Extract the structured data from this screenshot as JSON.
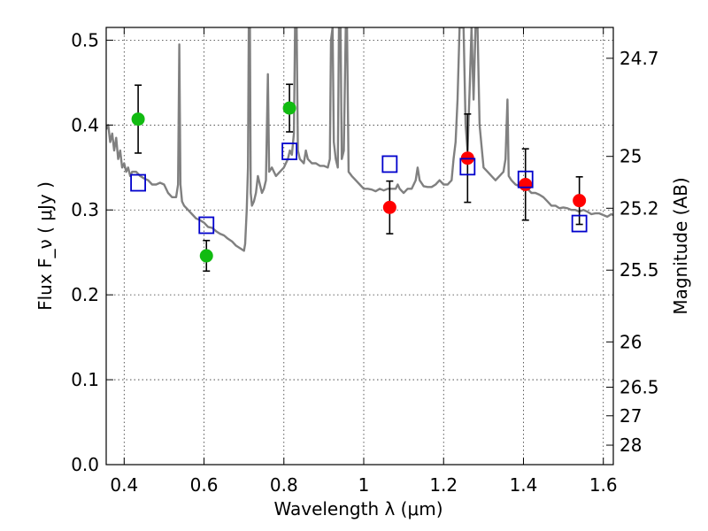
{
  "chart_data": {
    "type": "scatter",
    "xlabel": "Wavelength  λ (μm)",
    "ylabel": "Flux  F_ν  ( μJy )",
    "y2label": "Magnitude (AB)",
    "xlim": [
      0.355,
      1.625
    ],
    "ylim": [
      0.0,
      0.515
    ],
    "grid": true,
    "x_ticks": [
      {
        "value": 0.4,
        "label": "0.4"
      },
      {
        "value": 0.6,
        "label": "0.6"
      },
      {
        "value": 0.8,
        "label": "0.8"
      },
      {
        "value": 1.0,
        "label": "1"
      },
      {
        "value": 1.2,
        "label": "1.2"
      },
      {
        "value": 1.4,
        "label": "1.4"
      },
      {
        "value": 1.6,
        "label": "1.6"
      }
    ],
    "y_ticks": [
      {
        "value": 0.0,
        "label": "0.0"
      },
      {
        "value": 0.1,
        "label": "0.1"
      },
      {
        "value": 0.2,
        "label": "0.2"
      },
      {
        "value": 0.3,
        "label": "0.3"
      },
      {
        "value": 0.4,
        "label": "0.4"
      },
      {
        "value": 0.5,
        "label": "0.5"
      }
    ],
    "mag_ticks": [
      {
        "value": 24.7,
        "label": "24.7"
      },
      {
        "value": 25.0,
        "label": "25"
      },
      {
        "value": 25.2,
        "label": "25.2"
      },
      {
        "value": 25.5,
        "label": "25.5"
      },
      {
        "value": 26.0,
        "label": "26"
      },
      {
        "value": 26.5,
        "label": "26.5"
      },
      {
        "value": 27.0,
        "label": "27"
      },
      {
        "value": 28.0,
        "label": "28"
      }
    ],
    "spectrum": {
      "color": "#808080",
      "points": [
        [
          0.355,
          0.395
        ],
        [
          0.36,
          0.4
        ],
        [
          0.365,
          0.38
        ],
        [
          0.37,
          0.39
        ],
        [
          0.375,
          0.37
        ],
        [
          0.38,
          0.385
        ],
        [
          0.385,
          0.36
        ],
        [
          0.39,
          0.37
        ],
        [
          0.395,
          0.35
        ],
        [
          0.4,
          0.355
        ],
        [
          0.405,
          0.345
        ],
        [
          0.41,
          0.35
        ],
        [
          0.415,
          0.34
        ],
        [
          0.42,
          0.345
        ],
        [
          0.43,
          0.345
        ],
        [
          0.44,
          0.34
        ],
        [
          0.45,
          0.337
        ],
        [
          0.46,
          0.335
        ],
        [
          0.47,
          0.33
        ],
        [
          0.48,
          0.33
        ],
        [
          0.49,
          0.332
        ],
        [
          0.5,
          0.33
        ],
        [
          0.51,
          0.32
        ],
        [
          0.52,
          0.315
        ],
        [
          0.53,
          0.315
        ],
        [
          0.535,
          0.33
        ],
        [
          0.538,
          0.495
        ],
        [
          0.541,
          0.33
        ],
        [
          0.545,
          0.31
        ],
        [
          0.55,
          0.305
        ],
        [
          0.56,
          0.3
        ],
        [
          0.57,
          0.295
        ],
        [
          0.58,
          0.29
        ],
        [
          0.59,
          0.288
        ],
        [
          0.6,
          0.285
        ],
        [
          0.61,
          0.28
        ],
        [
          0.62,
          0.279
        ],
        [
          0.63,
          0.275
        ],
        [
          0.64,
          0.272
        ],
        [
          0.65,
          0.27
        ],
        [
          0.66,
          0.266
        ],
        [
          0.67,
          0.263
        ],
        [
          0.68,
          0.258
        ],
        [
          0.69,
          0.255
        ],
        [
          0.7,
          0.252
        ],
        [
          0.703,
          0.26
        ],
        [
          0.707,
          0.3
        ],
        [
          0.71,
          0.35
        ],
        [
          0.712,
          0.515
        ],
        [
          0.715,
          0.515
        ],
        [
          0.717,
          0.32
        ],
        [
          0.72,
          0.305
        ],
        [
          0.725,
          0.31
        ],
        [
          0.73,
          0.32
        ],
        [
          0.735,
          0.34
        ],
        [
          0.74,
          0.33
        ],
        [
          0.745,
          0.32
        ],
        [
          0.75,
          0.325
        ],
        [
          0.755,
          0.335
        ],
        [
          0.76,
          0.46
        ],
        [
          0.763,
          0.345
        ],
        [
          0.77,
          0.35
        ],
        [
          0.78,
          0.34
        ],
        [
          0.79,
          0.345
        ],
        [
          0.8,
          0.35
        ],
        [
          0.805,
          0.355
        ],
        [
          0.81,
          0.36
        ],
        [
          0.815,
          0.37
        ],
        [
          0.82,
          0.365
        ],
        [
          0.825,
          0.39
        ],
        [
          0.828,
          0.515
        ],
        [
          0.832,
          0.515
        ],
        [
          0.835,
          0.37
        ],
        [
          0.84,
          0.36
        ],
        [
          0.85,
          0.355
        ],
        [
          0.855,
          0.37
        ],
        [
          0.86,
          0.36
        ],
        [
          0.87,
          0.355
        ],
        [
          0.88,
          0.355
        ],
        [
          0.89,
          0.352
        ],
        [
          0.9,
          0.352
        ],
        [
          0.91,
          0.35
        ],
        [
          0.915,
          0.36
        ],
        [
          0.918,
          0.5
        ],
        [
          0.922,
          0.515
        ],
        [
          0.925,
          0.38
        ],
        [
          0.93,
          0.36
        ],
        [
          0.935,
          0.35
        ],
        [
          0.938,
          0.515
        ],
        [
          0.942,
          0.515
        ],
        [
          0.945,
          0.36
        ],
        [
          0.95,
          0.37
        ],
        [
          0.955,
          0.515
        ],
        [
          0.958,
          0.515
        ],
        [
          0.962,
          0.345
        ],
        [
          0.97,
          0.34
        ],
        [
          0.98,
          0.335
        ],
        [
          0.99,
          0.33
        ],
        [
          1.0,
          0.325
        ],
        [
          1.01,
          0.325
        ],
        [
          1.02,
          0.324
        ],
        [
          1.03,
          0.322
        ],
        [
          1.04,
          0.325
        ],
        [
          1.05,
          0.323
        ],
        [
          1.06,
          0.325
        ],
        [
          1.07,
          0.325
        ],
        [
          1.08,
          0.325
        ],
        [
          1.085,
          0.33
        ],
        [
          1.09,
          0.325
        ],
        [
          1.1,
          0.32
        ],
        [
          1.11,
          0.325
        ],
        [
          1.12,
          0.325
        ],
        [
          1.13,
          0.335
        ],
        [
          1.135,
          0.35
        ],
        [
          1.14,
          0.335
        ],
        [
          1.15,
          0.328
        ],
        [
          1.16,
          0.327
        ],
        [
          1.17,
          0.327
        ],
        [
          1.18,
          0.33
        ],
        [
          1.19,
          0.335
        ],
        [
          1.2,
          0.33
        ],
        [
          1.21,
          0.33
        ],
        [
          1.22,
          0.335
        ],
        [
          1.225,
          0.36
        ],
        [
          1.23,
          0.38
        ],
        [
          1.235,
          0.43
        ],
        [
          1.24,
          0.515
        ],
        [
          1.25,
          0.515
        ],
        [
          1.255,
          0.4
        ],
        [
          1.26,
          0.37
        ],
        [
          1.265,
          0.44
        ],
        [
          1.27,
          0.515
        ],
        [
          1.275,
          0.43
        ],
        [
          1.28,
          0.515
        ],
        [
          1.285,
          0.515
        ],
        [
          1.29,
          0.4
        ],
        [
          1.3,
          0.35
        ],
        [
          1.31,
          0.345
        ],
        [
          1.32,
          0.34
        ],
        [
          1.33,
          0.335
        ],
        [
          1.34,
          0.34
        ],
        [
          1.35,
          0.345
        ],
        [
          1.355,
          0.36
        ],
        [
          1.36,
          0.43
        ],
        [
          1.363,
          0.34
        ],
        [
          1.37,
          0.335
        ],
        [
          1.38,
          0.33
        ],
        [
          1.39,
          0.328
        ],
        [
          1.4,
          0.325
        ],
        [
          1.41,
          0.325
        ],
        [
          1.42,
          0.32
        ],
        [
          1.43,
          0.32
        ],
        [
          1.44,
          0.318
        ],
        [
          1.45,
          0.315
        ],
        [
          1.46,
          0.31
        ],
        [
          1.47,
          0.305
        ],
        [
          1.48,
          0.305
        ],
        [
          1.49,
          0.302
        ],
        [
          1.5,
          0.303
        ],
        [
          1.51,
          0.302
        ],
        [
          1.52,
          0.3
        ],
        [
          1.53,
          0.3
        ],
        [
          1.54,
          0.298
        ],
        [
          1.55,
          0.3
        ],
        [
          1.56,
          0.298
        ],
        [
          1.57,
          0.295
        ],
        [
          1.58,
          0.296
        ],
        [
          1.59,
          0.296
        ],
        [
          1.6,
          0.294
        ],
        [
          1.61,
          0.292
        ],
        [
          1.62,
          0.295
        ],
        [
          1.625,
          0.294
        ]
      ]
    },
    "series": [
      {
        "marker": "circle",
        "color": "#11bb11",
        "points": [
          {
            "x": 0.435,
            "y": 0.407,
            "yerr": 0.04
          },
          {
            "x": 0.606,
            "y": 0.246,
            "yerr": 0.018
          },
          {
            "x": 0.814,
            "y": 0.42,
            "yerr": 0.028
          }
        ]
      },
      {
        "marker": "circle",
        "color": "#ff0000",
        "points": [
          {
            "x": 1.065,
            "y": 0.303,
            "yerr": 0.031
          },
          {
            "x": 1.26,
            "y": 0.361,
            "yerr": 0.052
          },
          {
            "x": 1.405,
            "y": 0.33,
            "yerr": 0.042
          },
          {
            "x": 1.54,
            "y": 0.311,
            "yerr": 0.028
          }
        ]
      },
      {
        "marker": "open-square",
        "color": "#0000cc",
        "points": [
          {
            "x": 0.435,
            "y": 0.332
          },
          {
            "x": 0.606,
            "y": 0.282
          },
          {
            "x": 0.814,
            "y": 0.369
          },
          {
            "x": 1.065,
            "y": 0.354
          },
          {
            "x": 1.26,
            "y": 0.351
          },
          {
            "x": 1.405,
            "y": 0.336
          },
          {
            "x": 1.54,
            "y": 0.284
          }
        ]
      }
    ]
  }
}
